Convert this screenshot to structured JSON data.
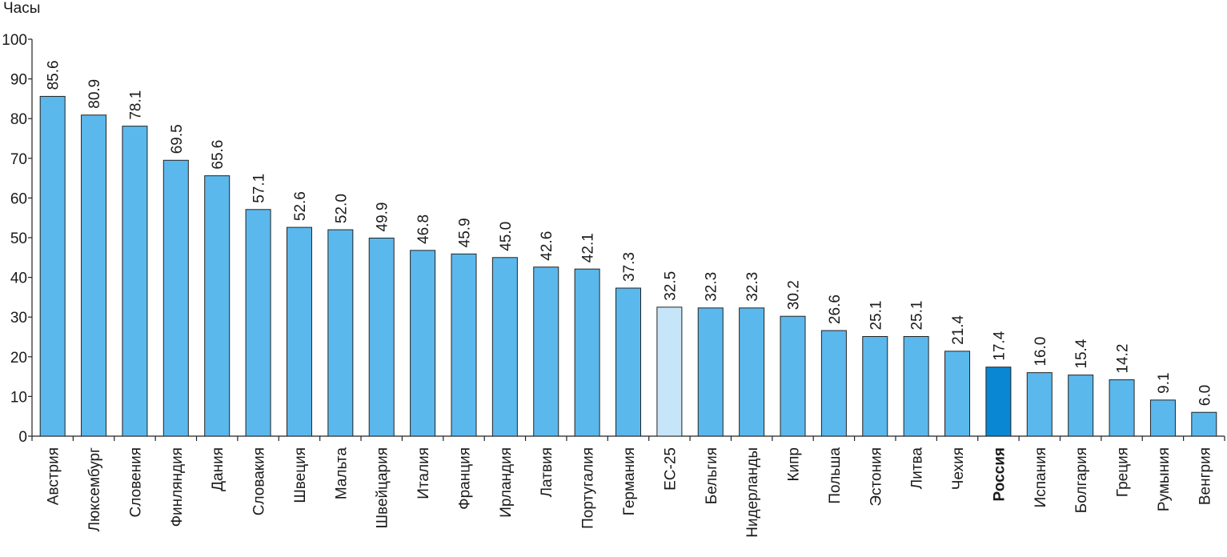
{
  "chart_data": {
    "type": "bar",
    "title": "",
    "xlabel": "",
    "ylabel": "Часы",
    "ylim": [
      0,
      100
    ],
    "yticks": [
      0,
      10,
      20,
      30,
      40,
      50,
      60,
      70,
      80,
      90,
      100
    ],
    "grid": false,
    "categories": [
      "Австрия",
      "Люксембург",
      "Словения",
      "Финляндия",
      "Дания",
      "Словакия",
      "Швеция",
      "Мальта",
      "Швейцария",
      "Италия",
      "Франция",
      "Ирландия",
      "Латвия",
      "Португалия",
      "Германия",
      "ЕС-25",
      "Бельгия",
      "Нидерланды",
      "Кипр",
      "Польша",
      "Эстония",
      "Литва",
      "Чехия",
      "Россия",
      "Испания",
      "Болгария",
      "Греция",
      "Румыния",
      "Венгрия"
    ],
    "values": [
      85.6,
      80.9,
      78.1,
      69.5,
      65.6,
      57.1,
      52.6,
      52.0,
      49.9,
      46.8,
      45.9,
      45.0,
      42.6,
      42.1,
      37.3,
      32.5,
      32.3,
      32.3,
      30.2,
      26.6,
      25.1,
      25.1,
      21.4,
      17.4,
      16.0,
      15.4,
      14.2,
      9.1,
      6.0
    ],
    "value_labels": [
      "85.6",
      "80.9",
      "78.1",
      "69.5",
      "65.6",
      "57.1",
      "52.6",
      "52.0",
      "49.9",
      "46.8",
      "45.9",
      "45.0",
      "42.6",
      "42.1",
      "37.3",
      "32.5",
      "32.3",
      "32.3",
      "30.2",
      "26.6",
      "25.1",
      "25.1",
      "21.4",
      "17.4",
      "16.0",
      "15.4",
      "14.2",
      "9.1",
      "6.0"
    ],
    "highlight": {
      "ЕС-25": "average",
      "Россия": "emphasized"
    },
    "colors": {
      "default": "#5bb8ec",
      "average": "#c6e5f8",
      "emphasized": "#0a87d2",
      "stroke": "#222222",
      "text": "#1a1a1a"
    }
  }
}
